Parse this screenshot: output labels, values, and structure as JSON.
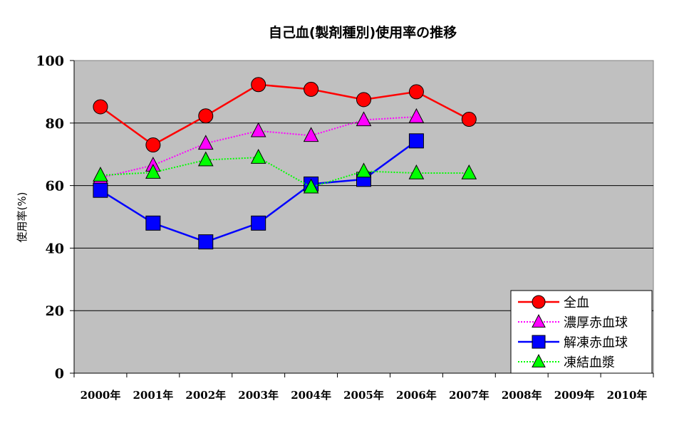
{
  "chart_data": {
    "type": "line",
    "title": "自己血(製剤種別)使用率の推移",
    "xlabel": "",
    "ylabel": "使用率(%)",
    "ylim": [
      0,
      100
    ],
    "yticks": [
      "0",
      "20",
      "40",
      "60",
      "80",
      "100"
    ],
    "categories": [
      "2000年",
      "2001年",
      "2002年",
      "2003年",
      "2004年",
      "2005年",
      "2006年",
      "2007年",
      "2008年",
      "2009年",
      "2010年"
    ],
    "grid": true,
    "legend": "bottom-right",
    "plot_background": "#c0c0c0",
    "series": [
      {
        "name": "全血",
        "color": "#ff0000",
        "marker": "circle",
        "line": "solid",
        "values": [
          85.2,
          73,
          82.3,
          92.3,
          90.8,
          87.5,
          90,
          81.2,
          null,
          null,
          null
        ]
      },
      {
        "name": "濃厚赤血球",
        "color": "#ff00ff",
        "marker": "triangle",
        "line": "dotted",
        "values": [
          62.5,
          66.5,
          73.5,
          77.5,
          76,
          81,
          82,
          null,
          null,
          null,
          null
        ]
      },
      {
        "name": "解凍赤血球",
        "color": "#0000ff",
        "marker": "square",
        "line": "solid",
        "values": [
          58.5,
          48,
          42,
          48,
          60.5,
          62,
          74.3,
          null,
          null,
          null,
          null
        ]
      },
      {
        "name": "凍結血漿",
        "color": "#00ff00",
        "marker": "triangle",
        "line": "dotted",
        "values": [
          63.3,
          64.2,
          68.2,
          69,
          59.5,
          64.6,
          64,
          64,
          null,
          null,
          null
        ]
      }
    ]
  }
}
